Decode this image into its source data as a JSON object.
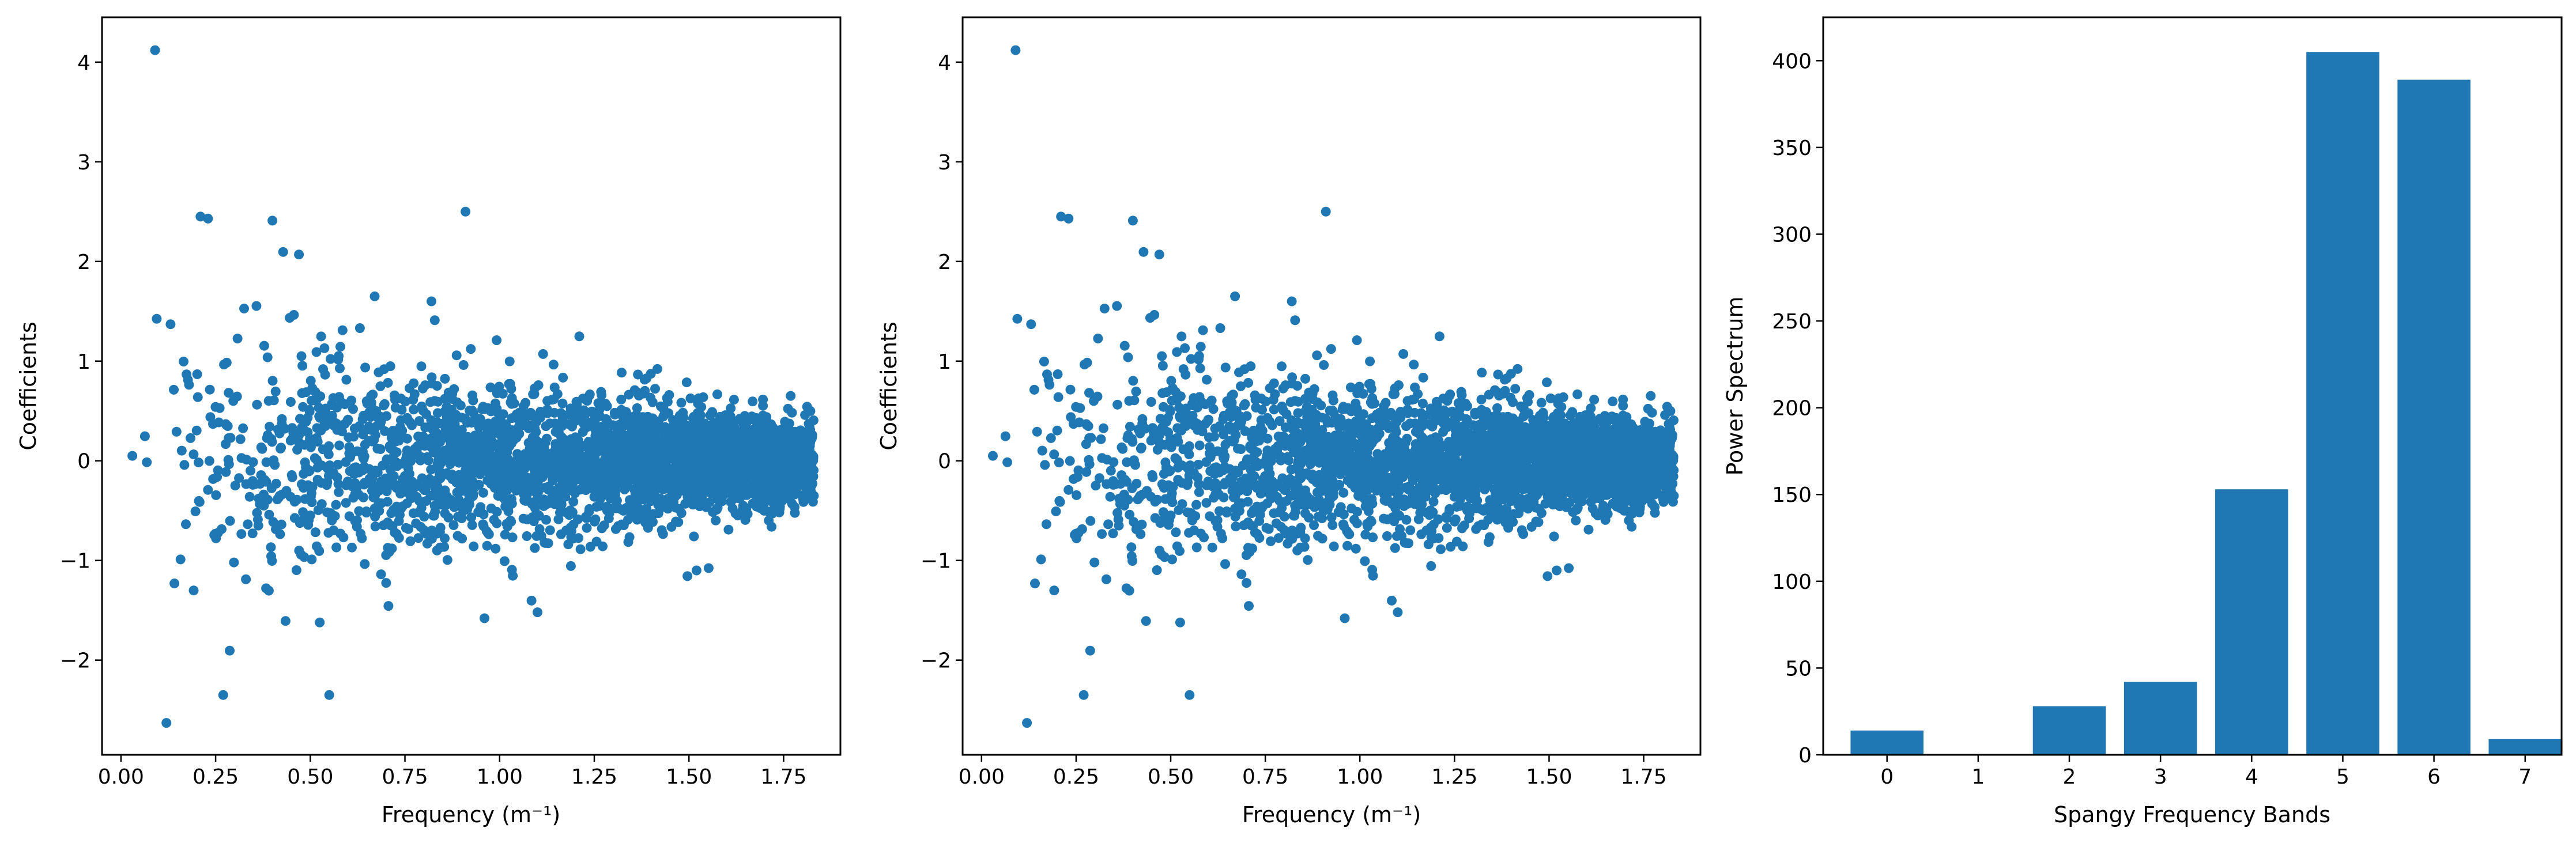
{
  "figure": {
    "background": "#ffffff",
    "marker_color": "#1f77b4"
  },
  "chart_data": [
    {
      "type": "scatter",
      "xlabel": "Frequency (m⁻¹)",
      "ylabel": "Coefficients",
      "xlim": [
        -0.05,
        1.9
      ],
      "ylim": [
        -2.95,
        4.45
      ],
      "xticks": [
        0.0,
        0.25,
        0.5,
        0.75,
        1.0,
        1.25,
        1.5,
        1.75
      ],
      "xtick_labels": [
        "0.00",
        "0.25",
        "0.50",
        "0.75",
        "1.00",
        "1.25",
        "1.50",
        "1.75"
      ],
      "yticks": [
        -2,
        -1,
        0,
        1,
        2,
        3,
        4
      ],
      "ytick_labels": [
        "−2",
        "−1",
        "0",
        "1",
        "2",
        "3",
        "4"
      ],
      "color": "#1f77b4",
      "notable_points": [
        {
          "x": 0.09,
          "y": 4.12
        },
        {
          "x": 0.12,
          "y": -2.63
        },
        {
          "x": 0.91,
          "y": 2.5
        },
        {
          "x": 0.21,
          "y": 2.45
        },
        {
          "x": 0.23,
          "y": 2.43
        },
        {
          "x": 0.4,
          "y": 2.41
        },
        {
          "x": 0.47,
          "y": 2.07
        },
        {
          "x": 0.55,
          "y": -2.35
        },
        {
          "x": 0.27,
          "y": -2.35
        },
        {
          "x": 0.67,
          "y": 1.65
        },
        {
          "x": 0.82,
          "y": 1.6
        },
        {
          "x": 1.1,
          "y": -1.52
        },
        {
          "x": 0.96,
          "y": -1.58
        },
        {
          "x": 1.52,
          "y": -1.1
        },
        {
          "x": 0.03,
          "y": 0.05
        }
      ],
      "cloud": {
        "x_range": [
          0.03,
          1.83
        ],
        "n_points": 3000,
        "note": "amplitude decreases with frequency"
      }
    },
    {
      "type": "scatter",
      "xlabel": "Frequency (m⁻¹)",
      "ylabel": "Coefficients",
      "xlim": [
        -0.05,
        1.9
      ],
      "ylim": [
        -2.95,
        4.45
      ],
      "xticks": [
        0.0,
        0.25,
        0.5,
        0.75,
        1.0,
        1.25,
        1.5,
        1.75
      ],
      "xtick_labels": [
        "0.00",
        "0.25",
        "0.50",
        "0.75",
        "1.00",
        "1.25",
        "1.50",
        "1.75"
      ],
      "yticks": [
        -2,
        -1,
        0,
        1,
        2,
        3,
        4
      ],
      "ytick_labels": [
        "−2",
        "−1",
        "0",
        "1",
        "2",
        "3",
        "4"
      ],
      "color": "#1f77b4",
      "notable_points": [
        {
          "x": 0.09,
          "y": 4.12
        },
        {
          "x": 0.12,
          "y": -2.63
        },
        {
          "x": 0.91,
          "y": 2.5
        },
        {
          "x": 0.21,
          "y": 2.45
        },
        {
          "x": 0.23,
          "y": 2.43
        },
        {
          "x": 0.4,
          "y": 2.41
        },
        {
          "x": 0.47,
          "y": 2.07
        },
        {
          "x": 0.55,
          "y": -2.35
        },
        {
          "x": 0.27,
          "y": -2.35
        },
        {
          "x": 0.67,
          "y": 1.65
        },
        {
          "x": 0.82,
          "y": 1.6
        },
        {
          "x": 1.1,
          "y": -1.52
        },
        {
          "x": 0.96,
          "y": -1.58
        },
        {
          "x": 1.52,
          "y": -1.1
        },
        {
          "x": 0.03,
          "y": 0.05
        }
      ],
      "cloud": {
        "x_range": [
          0.03,
          1.83
        ],
        "n_points": 3000,
        "note": "amplitude decreases with frequency"
      }
    },
    {
      "type": "bar",
      "xlabel": "Spangy Frequency Bands",
      "ylabel": "Power Spectrum",
      "categories": [
        "0",
        "1",
        "2",
        "3",
        "4",
        "5",
        "6",
        "7"
      ],
      "values": [
        14,
        0,
        28,
        42,
        153,
        405,
        389,
        9
      ],
      "xlim": [
        -0.7,
        7.4
      ],
      "ylim": [
        0,
        425
      ],
      "yticks": [
        0,
        50,
        100,
        150,
        200,
        250,
        300,
        350,
        400
      ],
      "ytick_labels": [
        "0",
        "50",
        "100",
        "150",
        "200",
        "250",
        "300",
        "350",
        "400"
      ],
      "color": "#1f77b4"
    }
  ]
}
